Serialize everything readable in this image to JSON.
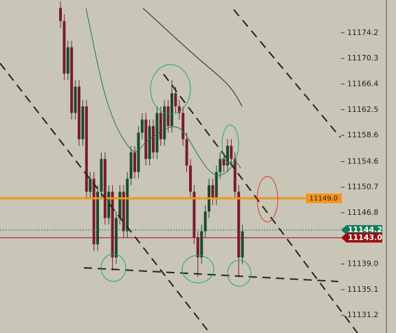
{
  "chart_data": {
    "type": "candlestick",
    "open": [
      11178,
      11176,
      11168,
      11172,
      11162,
      11166,
      11158,
      11163,
      11150,
      11152,
      11142,
      11150,
      11155,
      11146,
      11150,
      11140,
      11146,
      11150,
      11144,
      11152,
      11156,
      11153,
      11159,
      11161,
      11155,
      11160,
      11156,
      11162,
      11158,
      11163,
      11160,
      11165,
      11163,
      11162,
      11158,
      11154,
      11150,
      11143,
      11140,
      11144,
      11147,
      11151,
      11149,
      11153,
      11155,
      11154,
      11157,
      11155,
      11150,
      11140
    ],
    "high": [
      11179,
      11177,
      11173,
      11173,
      11167,
      11167,
      11164,
      11164,
      11153,
      11153,
      11151,
      11156,
      11156,
      11151,
      11151,
      11147,
      11151,
      11151,
      11153,
      11157,
      11157,
      11160,
      11162,
      11162,
      11161,
      11161,
      11163,
      11163,
      11164,
      11164,
      11167,
      11166,
      11164,
      11163,
      11159,
      11155,
      11151,
      11144,
      11145,
      11148,
      11152,
      11152,
      11154,
      11156,
      11156,
      11158,
      11158,
      11156,
      11151,
      11145
    ],
    "low": [
      11175,
      11167,
      11167,
      11161,
      11161,
      11157,
      11157,
      11149,
      11149,
      11141,
      11141,
      11149,
      11145,
      11145,
      11138,
      11139,
      11145,
      11143,
      11143,
      11151,
      11152,
      11152,
      11158,
      11154,
      11154,
      11155,
      11155,
      11157,
      11157,
      11159,
      11159,
      11162,
      11161,
      11157,
      11153,
      11149,
      11142,
      11137,
      11139,
      11143,
      11146,
      11148,
      11148,
      11152,
      11153,
      11153,
      11154,
      11149,
      11137,
      11139
    ],
    "close": [
      11176,
      11168,
      11172,
      11162,
      11166,
      11158,
      11163,
      11150,
      11152,
      11142,
      11150,
      11155,
      11146,
      11150,
      11140,
      11146,
      11150,
      11144,
      11152,
      11156,
      11153,
      11159,
      11161,
      11155,
      11160,
      11156,
      11162,
      11158,
      11163,
      11160,
      11165,
      11163,
      11162,
      11158,
      11154,
      11150,
      11143,
      11140,
      11144,
      11147,
      11151,
      11149,
      11153,
      11155,
      11154,
      11157,
      11155,
      11150,
      11140,
      11144
    ],
    "up_color": "#1e4a2c",
    "down_color": "#7a1c2c",
    "ylim": [
      11128.5,
      11179.2
    ],
    "yticks": [
      11174.2,
      11170.3,
      11166.4,
      11162.5,
      11158.6,
      11154.6,
      11150.7,
      11146.8,
      {
        "value": 11139,
        "label": "11139.0"
      },
      11135.1,
      11131.2
    ],
    "price_lines": [
      {
        "value": 11149,
        "label": "11149.0",
        "color": "#f7931a"
      },
      {
        "value": 11144.2,
        "label": "11144.2",
        "color": "#14795a"
      },
      {
        "value": 11143,
        "label": "11143.0",
        "color": "#9b0d12"
      }
    ]
  }
}
